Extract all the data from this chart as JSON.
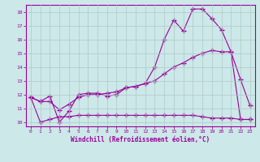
{
  "line1_x": [
    0,
    1,
    2,
    3,
    4,
    5,
    6,
    7,
    8,
    9,
    10,
    11,
    12,
    13,
    14,
    15,
    16,
    17,
    18,
    19,
    20,
    21,
    22,
    23
  ],
  "line1_y": [
    11.8,
    11.5,
    11.9,
    10.0,
    10.8,
    12.0,
    12.1,
    12.1,
    11.9,
    12.0,
    12.5,
    12.6,
    12.8,
    14.0,
    16.0,
    17.4,
    16.6,
    18.2,
    18.2,
    17.5,
    16.7,
    15.1,
    13.1,
    11.2
  ],
  "line2_x": [
    0,
    1,
    2,
    3,
    4,
    5,
    6,
    7,
    8,
    9,
    10,
    11,
    12,
    13,
    14,
    15,
    16,
    17,
    18,
    19,
    20,
    21,
    22,
    23
  ],
  "line2_y": [
    11.8,
    11.5,
    11.5,
    10.9,
    11.3,
    11.8,
    12.0,
    12.0,
    12.1,
    12.2,
    12.5,
    12.6,
    12.8,
    13.0,
    13.5,
    14.0,
    14.3,
    14.7,
    15.0,
    15.2,
    15.1,
    15.1,
    10.2,
    10.2
  ],
  "line3_x": [
    0,
    1,
    2,
    3,
    4,
    5,
    6,
    7,
    8,
    9,
    10,
    11,
    12,
    13,
    14,
    15,
    16,
    17,
    18,
    19,
    20,
    21,
    22,
    23
  ],
  "line3_y": [
    11.8,
    10.0,
    10.2,
    10.4,
    10.4,
    10.5,
    10.5,
    10.5,
    10.5,
    10.5,
    10.5,
    10.5,
    10.5,
    10.5,
    10.5,
    10.5,
    10.5,
    10.5,
    10.4,
    10.3,
    10.3,
    10.3,
    10.2,
    10.2
  ],
  "color": "#990099",
  "bg_color": "#cce8e8",
  "grid_color": "#b0c8c8",
  "xlabel": "Windchill (Refroidissement éolien,°C)",
  "xlim": [
    -0.5,
    23.5
  ],
  "ylim": [
    9.7,
    18.5
  ],
  "yticks": [
    10,
    11,
    12,
    13,
    14,
    15,
    16,
    17,
    18
  ],
  "xticks": [
    0,
    1,
    2,
    3,
    4,
    5,
    6,
    7,
    8,
    9,
    10,
    11,
    12,
    13,
    14,
    15,
    16,
    17,
    18,
    19,
    20,
    21,
    22,
    23
  ]
}
